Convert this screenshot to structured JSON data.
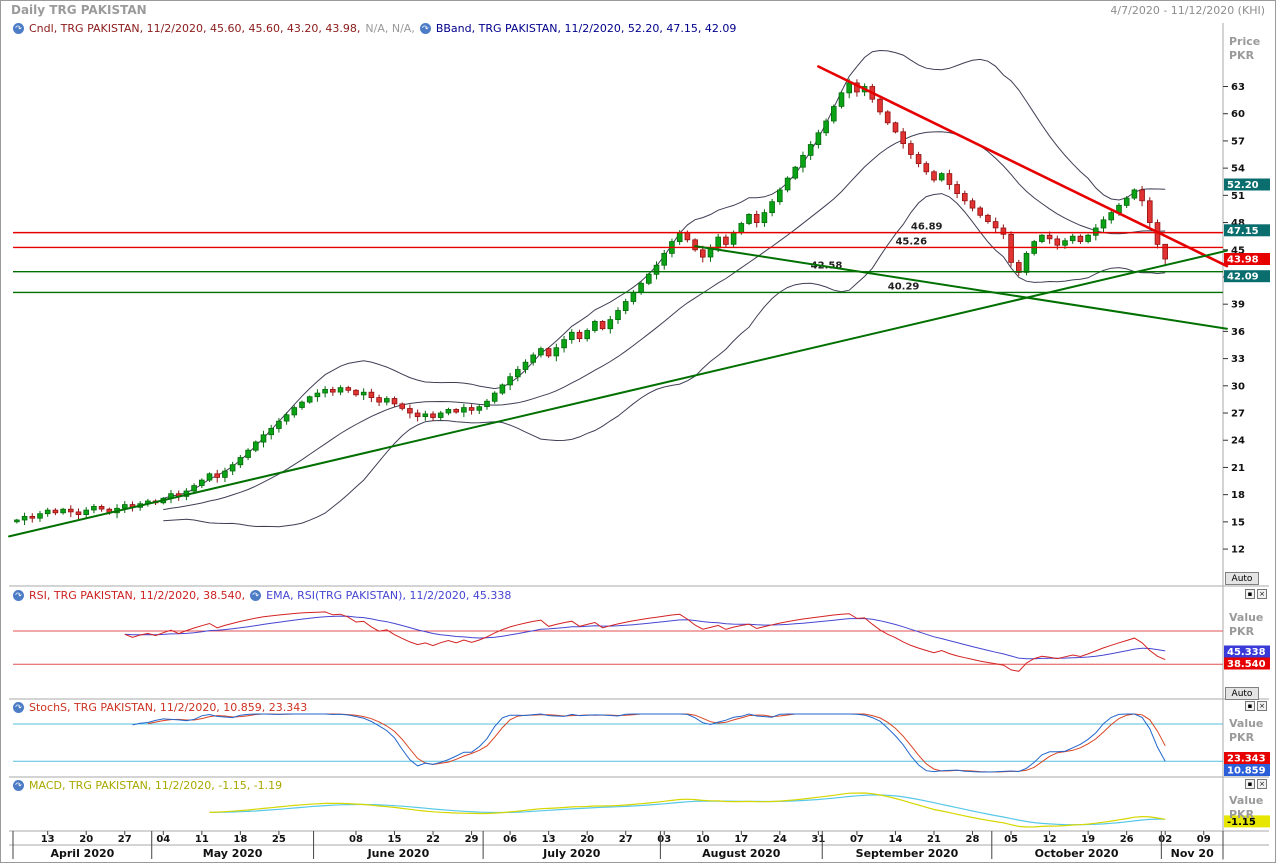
{
  "window": {
    "title": "Daily TRG PAKISTAN",
    "date_range": "4/7/2020 - 11/12/2020 (KHI)"
  },
  "icons": {
    "indicator": "↷",
    "minimize": "▪",
    "close": "×"
  },
  "legends": {
    "candle": {
      "text": "Cndl, TRG PAKISTAN, 11/2/2020, 45.60, 45.60, 43.20, 43.98,",
      "na_suffix": "N/A, N/A,",
      "color": "#8b1a1a"
    },
    "bband": {
      "text": "BBand, TRG PAKISTAN, 11/2/2020, 52.20, 47.15, 42.09",
      "color": "#00008b"
    },
    "rsi": {
      "text": "RSI, TRG PAKISTAN, 11/2/2020, 38.540,",
      "color": "#cc2222"
    },
    "rsi_ema": {
      "text": "EMA, RSI(TRG PAKISTAN), 11/2/2020, 45.338",
      "color": "#4646d2"
    },
    "stoch": {
      "text": "StochS, TRG PAKISTAN, 11/2/2020, 10.859, 23.343",
      "color": "#cc3322"
    },
    "macd": {
      "text": "MACD, TRG PAKISTAN, 11/2/2020, -1.15, -1.19",
      "color": "#a8a800"
    }
  },
  "axes": {
    "price_axis_title": "Price PKR",
    "value_axis_title": "Value PKR",
    "auto_button": "Auto",
    "price_ticks": [
      63,
      60,
      57,
      54,
      51,
      48,
      45,
      42,
      39,
      36,
      33,
      30,
      27,
      24,
      21,
      18,
      15,
      12
    ]
  },
  "rsi_panel": {
    "guides": [
      70,
      30
    ],
    "line_color": "#d42222",
    "ema_color": "#4646d2"
  },
  "stoch_panel": {
    "guides": [
      80,
      20
    ],
    "k_color": "#2266cc",
    "d_color": "#d84422"
  },
  "macd_panel": {
    "macd_color": "#d6d600",
    "signal_color": "#58c8e8"
  },
  "price_markers": [
    {
      "label": "52.20",
      "value": 52.2,
      "bg": "#0b6e6e",
      "fg": "#ffffff"
    },
    {
      "label": "47.15",
      "value": 47.15,
      "bg": "#0b6e6e",
      "fg": "#ffffff"
    },
    {
      "label": "43.98",
      "value": 43.98,
      "bg": "#e60000",
      "fg": "#ffffff"
    },
    {
      "label": "42.09",
      "value": 42.09,
      "bg": "#0b6e6e",
      "fg": "#ffffff"
    }
  ],
  "rsi_markers": [
    {
      "label": "45.338",
      "value": 45.338,
      "bg": "#3a3ad9",
      "fg": "#ffffff"
    },
    {
      "label": "38.540",
      "value": 38.54,
      "bg": "#e60000",
      "fg": "#ffffff"
    }
  ],
  "stoch_markers": [
    {
      "label": "23.343",
      "value": 23.343,
      "bg": "#e60000",
      "fg": "#ffffff"
    },
    {
      "label": "10.859",
      "value": 10.859,
      "bg": "#2b5fd9",
      "fg": "#ffffff"
    }
  ],
  "macd_markers": [
    {
      "label": "-1.15",
      "value": -1.15,
      "bg": "#e6e600",
      "fg": "#000000"
    }
  ],
  "xaxis": {
    "week_ticks": [
      {
        "i": 4,
        "label": "13"
      },
      {
        "i": 9,
        "label": "20"
      },
      {
        "i": 14,
        "label": "27"
      },
      {
        "i": 19,
        "label": "04"
      },
      {
        "i": 24,
        "label": "11"
      },
      {
        "i": 29,
        "label": "18"
      },
      {
        "i": 34,
        "label": "25"
      },
      {
        "i": 44,
        "label": "08"
      },
      {
        "i": 49,
        "label": "15"
      },
      {
        "i": 54,
        "label": "22"
      },
      {
        "i": 59,
        "label": "29"
      },
      {
        "i": 64,
        "label": "06"
      },
      {
        "i": 69,
        "label": "13"
      },
      {
        "i": 74,
        "label": "20"
      },
      {
        "i": 79,
        "label": "27"
      },
      {
        "i": 84,
        "label": "03"
      },
      {
        "i": 89,
        "label": "10"
      },
      {
        "i": 94,
        "label": "17"
      },
      {
        "i": 99,
        "label": "24"
      },
      {
        "i": 104,
        "label": "31"
      },
      {
        "i": 109,
        "label": "07"
      },
      {
        "i": 114,
        "label": "14"
      },
      {
        "i": 119,
        "label": "21"
      },
      {
        "i": 124,
        "label": "28"
      },
      {
        "i": 129,
        "label": "05"
      },
      {
        "i": 134,
        "label": "12"
      },
      {
        "i": 139,
        "label": "19"
      },
      {
        "i": 144,
        "label": "26"
      },
      {
        "i": 149,
        "label": "02"
      },
      {
        "i": 154,
        "label": "09"
      }
    ],
    "months": [
      {
        "label": "April 2020",
        "start": 0,
        "end": 18
      },
      {
        "label": "May 2020",
        "start": 18,
        "end": 39
      },
      {
        "label": "June 2020",
        "start": 39,
        "end": 61
      },
      {
        "label": "July 2020",
        "start": 61,
        "end": 84
      },
      {
        "label": "August 2020",
        "start": 84,
        "end": 105
      },
      {
        "label": "September 2020",
        "start": 105,
        "end": 127
      },
      {
        "label": "October 2020",
        "start": 127,
        "end": 149
      },
      {
        "label": "Nov 20",
        "start": 149,
        "end": 157
      }
    ]
  },
  "chart_data": {
    "type": "candlestick",
    "symbol": "TRG PAKISTAN",
    "periodicity": "Daily",
    "ylim": [
      12,
      63
    ],
    "price_currency": "PKR",
    "last_candle": {
      "date": "11/2/2020",
      "open": 45.6,
      "high": 45.6,
      "low": 43.2,
      "close": 43.98
    },
    "bollinger_last": {
      "upper": 52.2,
      "middle": 47.15,
      "lower": 42.09
    },
    "rsi_last": 38.54,
    "rsi_ema_last": 45.338,
    "stoch_last": {
      "k": 10.859,
      "d": 23.343
    },
    "macd_last": {
      "macd": -1.15,
      "signal": -1.19
    },
    "first_open": 15.0,
    "closes": [
      15.2,
      15.6,
      15.4,
      15.9,
      16.3,
      16.0,
      16.4,
      16.1,
      15.8,
      16.3,
      16.7,
      16.4,
      16.0,
      16.5,
      16.9,
      16.6,
      17.0,
      17.3,
      17.1,
      17.6,
      18.1,
      17.8,
      18.4,
      19.0,
      19.6,
      20.3,
      19.9,
      20.6,
      21.3,
      22.1,
      22.9,
      23.8,
      24.6,
      25.3,
      26.1,
      26.8,
      27.6,
      28.2,
      28.8,
      29.2,
      29.6,
      29.3,
      29.8,
      29.5,
      29.0,
      29.3,
      28.7,
      28.2,
      28.6,
      28.0,
      27.5,
      27.0,
      26.6,
      26.9,
      26.5,
      27.0,
      27.4,
      27.1,
      27.6,
      27.3,
      27.7,
      28.3,
      29.2,
      30.1,
      31.0,
      31.8,
      32.6,
      33.4,
      34.1,
      33.3,
      34.2,
      35.1,
      35.9,
      35.2,
      36.1,
      37.1,
      36.3,
      37.3,
      38.3,
      39.3,
      40.3,
      41.3,
      42.3,
      43.3,
      44.6,
      45.9,
      46.9,
      46.1,
      45.0,
      44.2,
      45.2,
      46.4,
      45.6,
      46.9,
      47.9,
      48.9,
      48.0,
      49.1,
      50.3,
      51.6,
      52.9,
      54.1,
      55.4,
      56.6,
      57.9,
      59.2,
      60.8,
      62.3,
      63.4,
      62.4,
      63.0,
      61.6,
      60.2,
      59.0,
      58.0,
      56.7,
      55.5,
      54.5,
      53.6,
      52.7,
      53.4,
      52.2,
      51.2,
      50.4,
      49.6,
      48.8,
      48.1,
      47.4,
      46.7,
      43.6,
      42.5,
      44.6,
      45.9,
      46.6,
      46.2,
      45.5,
      46.0,
      46.5,
      45.9,
      46.6,
      47.4,
      48.3,
      49.1,
      49.9,
      50.7,
      51.6,
      50.4,
      48.0,
      45.6,
      43.98
    ],
    "support_resistance": [
      {
        "label": "46.89",
        "value": 46.89,
        "color": "#e60000",
        "label_i": 116
      },
      {
        "label": "45.26",
        "value": 45.26,
        "color": "#e60000",
        "label_i": 114
      },
      {
        "label": "42.58",
        "value": 42.58,
        "color": "#007000",
        "label_i": 103
      },
      {
        "label": "40.29",
        "value": 40.29,
        "color": "#007000",
        "label_i": 113
      }
    ],
    "trendlines": [
      {
        "name": "downtrend-resistance-line",
        "color": "#e60000",
        "width": 2.6,
        "from": {
          "i": 104,
          "price": 65.2
        },
        "to": {
          "i": 157,
          "price": 43.2
        }
      },
      {
        "name": "long-uptrend-support-line",
        "color": "#007000",
        "width": 2,
        "from": {
          "i": -1,
          "price": 13.4
        },
        "to": {
          "i": 157,
          "price": 44.9
        }
      },
      {
        "name": "descending-support-line",
        "color": "#007000",
        "width": 2,
        "from": {
          "i": 88,
          "price": 45.4
        },
        "to": {
          "i": 157,
          "price": 36.3
        }
      }
    ]
  }
}
